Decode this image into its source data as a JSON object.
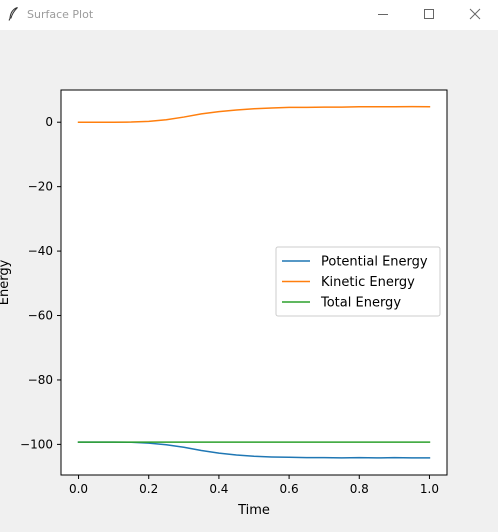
{
  "window": {
    "title": "Surface Plot",
    "icons": {
      "app": "feather-icon",
      "minimize": "minimize-icon",
      "maximize": "maximize-icon",
      "close": "close-icon"
    }
  },
  "colors": {
    "titlebar_bg": "#ffffff",
    "window_bg": "#f0f0f0",
    "plot_bg": "#ffffff",
    "potential": "#1f77b4",
    "kinetic": "#ff7f0e",
    "total": "#2ca02c"
  },
  "chart_data": {
    "type": "line",
    "title": "",
    "xlabel": "Time",
    "ylabel": "Energy",
    "xlim": [
      -0.05,
      1.05
    ],
    "ylim": [
      -109.5,
      10
    ],
    "xticks": [
      0.0,
      0.2,
      0.4,
      0.6,
      0.8,
      1.0
    ],
    "xtick_labels": [
      "0.0",
      "0.2",
      "0.4",
      "0.6",
      "0.8",
      "1.0"
    ],
    "yticks": [
      0,
      -20,
      -40,
      -60,
      -80,
      -100
    ],
    "ytick_labels": [
      "0",
      "−20",
      "−40",
      "−60",
      "−80",
      "−100"
    ],
    "grid": false,
    "legend_position": "center-right",
    "x": [
      0.0,
      0.05,
      0.1,
      0.15,
      0.2,
      0.25,
      0.3,
      0.35,
      0.4,
      0.45,
      0.5,
      0.55,
      0.6,
      0.65,
      0.7,
      0.75,
      0.8,
      0.85,
      0.9,
      0.95,
      1.0
    ],
    "series": [
      {
        "name": "Potential Energy",
        "color": "#1f77b4",
        "values": [
          -99.3,
          -99.3,
          -99.3,
          -99.35,
          -99.6,
          -100.1,
          -100.9,
          -101.9,
          -102.7,
          -103.3,
          -103.7,
          -103.9,
          -104.0,
          -104.1,
          -104.1,
          -104.2,
          -104.1,
          -104.2,
          -104.1,
          -104.2,
          -104.2
        ]
      },
      {
        "name": "Kinetic Energy",
        "color": "#ff7f0e",
        "values": [
          0.0,
          0.0,
          0.0,
          0.05,
          0.25,
          0.75,
          1.6,
          2.6,
          3.3,
          3.8,
          4.2,
          4.4,
          4.6,
          4.6,
          4.7,
          4.7,
          4.8,
          4.8,
          4.8,
          4.85,
          4.8
        ]
      },
      {
        "name": "Total Energy",
        "color": "#2ca02c",
        "values": [
          -99.3,
          -99.3,
          -99.3,
          -99.3,
          -99.3,
          -99.3,
          -99.3,
          -99.3,
          -99.3,
          -99.3,
          -99.3,
          -99.3,
          -99.3,
          -99.3,
          -99.3,
          -99.3,
          -99.3,
          -99.3,
          -99.3,
          -99.3,
          -99.3
        ]
      }
    ]
  }
}
